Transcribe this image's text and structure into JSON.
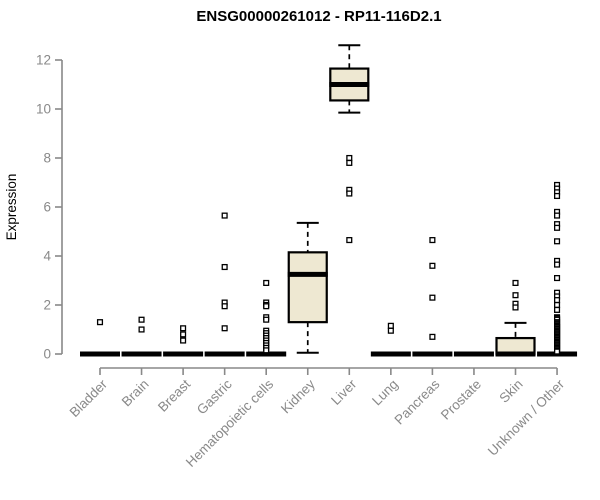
{
  "chart_data": {
    "type": "boxplot",
    "title": "ENSG00000261012 - RP11-116D2.1",
    "ylabel": "Expression",
    "xlabel": "",
    "ylim": [
      0,
      12.65
    ],
    "yticks": [
      0,
      2,
      4,
      6,
      8,
      10,
      12
    ],
    "grid": false,
    "legend": false,
    "categories": [
      "Bladder",
      "Brain",
      "Breast",
      "Gastric",
      "Hematopoietic cells",
      "Kidney",
      "Liver",
      "Lung",
      "Pancreas",
      "Prostate",
      "Skin",
      "Unknown / Other"
    ],
    "series": [
      {
        "name": "Bladder",
        "low": 0,
        "q1": 0,
        "median": 0,
        "q3": 0,
        "high": 0,
        "outliers": [
          1.3
        ]
      },
      {
        "name": "Brain",
        "low": 0,
        "q1": 0,
        "median": 0,
        "q3": 0,
        "high": 0,
        "outliers": [
          1.4,
          1.0
        ]
      },
      {
        "name": "Breast",
        "low": 0,
        "q1": 0,
        "median": 0,
        "q3": 0,
        "high": 0,
        "outliers": [
          1.05,
          0.8,
          0.55
        ]
      },
      {
        "name": "Gastric",
        "low": 0,
        "q1": 0,
        "median": 0,
        "q3": 0,
        "high": 0,
        "outliers": [
          5.65,
          3.55,
          2.1,
          1.95,
          1.05
        ]
      },
      {
        "name": "Hematopoietic cells",
        "low": 0,
        "q1": 0,
        "median": 0,
        "q3": 0,
        "high": 0,
        "outliers": [
          2.9,
          2.1,
          2.0,
          1.95,
          1.5,
          1.4,
          0.95,
          0.85,
          0.75,
          0.65,
          0.55,
          0.45,
          0.35,
          0.25,
          0.15
        ]
      },
      {
        "name": "Kidney",
        "low": 0.05,
        "q1": 1.3,
        "median": 3.25,
        "q3": 4.15,
        "high": 5.35,
        "outliers": []
      },
      {
        "name": "Liver",
        "low": 9.85,
        "q1": 10.35,
        "median": 11.0,
        "q3": 11.65,
        "high": 12.6,
        "outliers": [
          8.0,
          7.8,
          6.7,
          6.55,
          4.65
        ]
      },
      {
        "name": "Lung",
        "low": 0,
        "q1": 0,
        "median": 0,
        "q3": 0,
        "high": 0,
        "outliers": [
          1.15,
          0.95
        ]
      },
      {
        "name": "Pancreas",
        "low": 0,
        "q1": 0,
        "median": 0,
        "q3": 0,
        "high": 0,
        "outliers": [
          4.65,
          3.6,
          2.3,
          0.7
        ]
      },
      {
        "name": "Prostate",
        "low": 0,
        "q1": 0,
        "median": 0,
        "q3": 0,
        "high": 0,
        "outliers": []
      },
      {
        "name": "Skin",
        "low": 0,
        "q1": 0,
        "median": 0,
        "q3": 0.65,
        "high": 1.27,
        "outliers": [
          2.9,
          2.4,
          2.05,
          1.9
        ]
      },
      {
        "name": "Unknown / Other",
        "low": 0,
        "q1": 0,
        "median": 0,
        "q3": 0,
        "high": 0,
        "outliers": [
          6.9,
          6.75,
          6.6,
          6.45,
          5.8,
          5.65,
          5.3,
          5.15,
          4.6,
          3.8,
          3.65,
          3.1,
          2.5,
          2.35,
          2.2,
          2.0,
          1.8,
          1.5,
          1.45,
          1.4,
          1.3,
          1.25,
          1.2,
          1.15,
          1.1,
          1.05,
          1.0,
          0.95,
          0.9,
          0.85,
          0.8,
          0.75,
          0.7,
          0.65,
          0.6,
          0.55,
          0.5,
          0.45,
          0.4,
          0.35,
          0.3,
          0.25,
          0.2,
          0.15,
          0.1
        ]
      }
    ],
    "colors": {
      "box_fill": "#EEE8D2",
      "box_stroke": "#000000",
      "median": "#000000",
      "whisker": "#000000",
      "outlier_stroke": "#000000",
      "outlier_fill": "#ffffff",
      "axis": "#898989",
      "tick_label": "#898989",
      "title": "#000000"
    }
  }
}
